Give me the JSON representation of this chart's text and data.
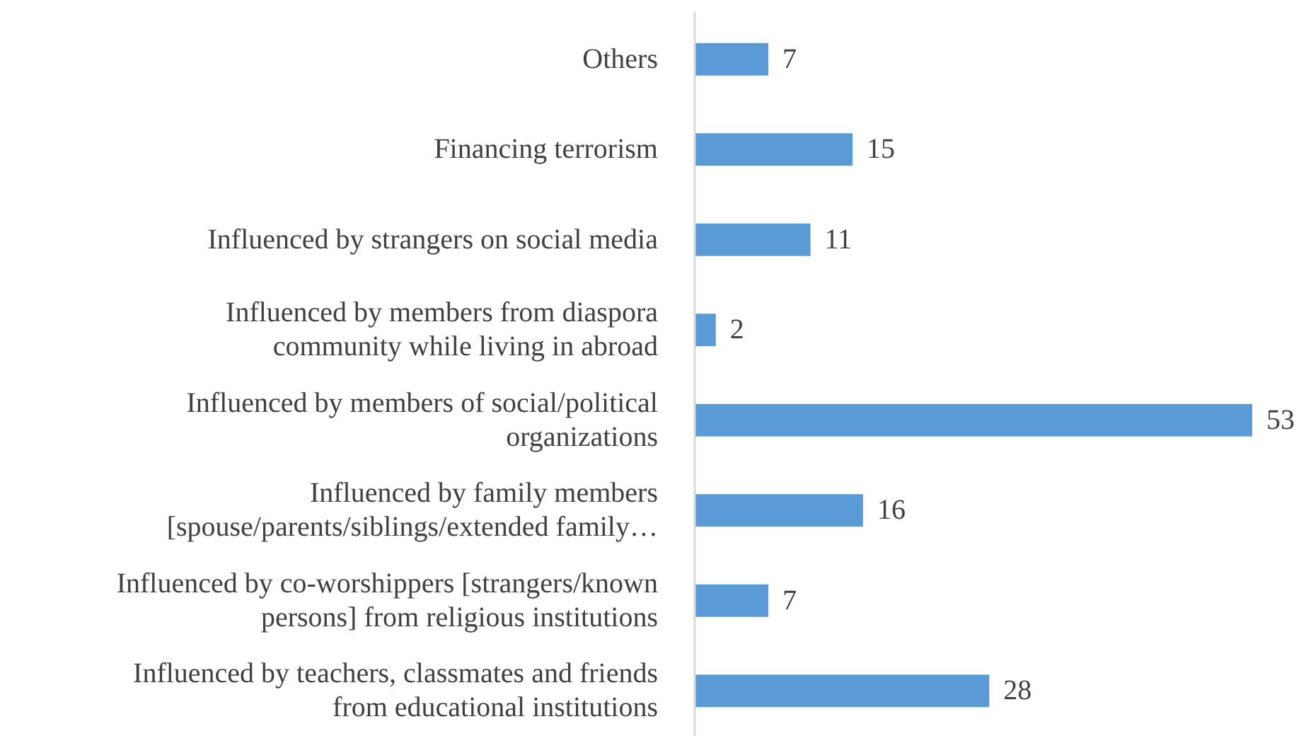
{
  "chart_data": {
    "type": "bar",
    "orientation": "horizontal",
    "data_labels": true,
    "color": "#5b9bd5",
    "categories": [
      "Others",
      "Financing terrorism",
      "Influenced by strangers on social media",
      "Influenced by members from diaspora\ncommunity while living in abroad",
      "Influenced by members of social/political\norganizations",
      "Influenced by family members\n[spouse/parents/siblings/extended family…",
      "Influenced by co-worshippers [strangers/known\npersons] from religious institutions",
      "Influenced by teachers, classmates and friends\nfrom educational institutions"
    ],
    "values": [
      7,
      15,
      11,
      2,
      53,
      16,
      7,
      28
    ]
  }
}
